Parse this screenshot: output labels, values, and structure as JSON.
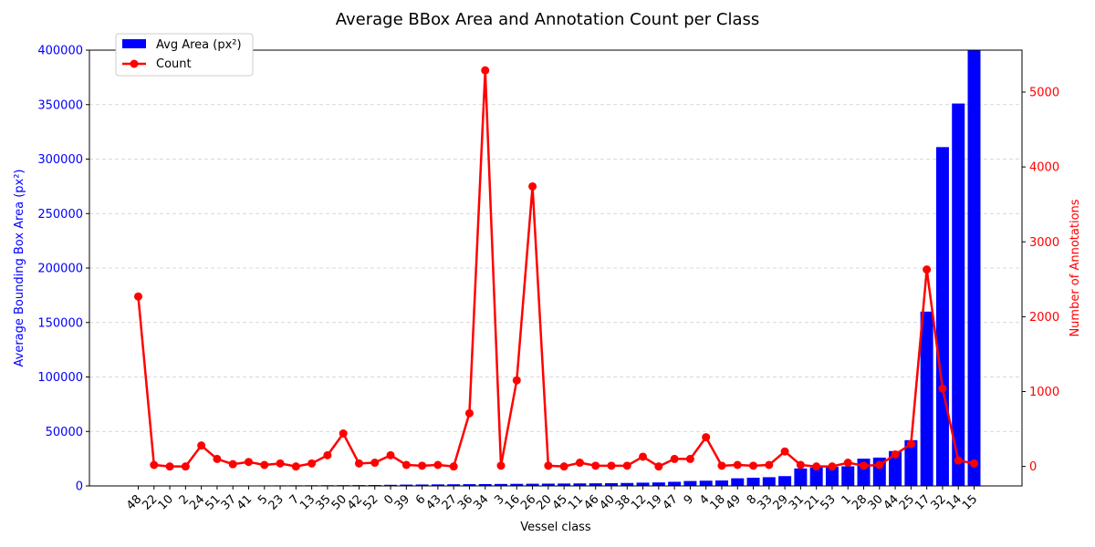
{
  "chart_data": {
    "type": "bar+line",
    "title": "Average BBox Area and Annotation Count per Class",
    "xlabel": "Vessel class",
    "ylabel_left": "Average Bounding Box Area (px²)",
    "ylabel_right": "Number of Annotations",
    "ylim_left": [
      0,
      400000
    ],
    "ylim_right": [
      -260,
      5560
    ],
    "yticks_left": [
      0,
      50000,
      100000,
      150000,
      200000,
      250000,
      300000,
      350000,
      400000
    ],
    "yticks_right": [
      0,
      1000,
      2000,
      3000,
      4000,
      5000
    ],
    "grid": "horizontal-dashed",
    "legend_position": "top-left",
    "colors": {
      "bars": "#0000ff",
      "line": "#ff0000",
      "left_axis": "#0000ff",
      "right_axis": "#ff0000"
    },
    "categories": [
      "48",
      "22",
      "10",
      "2",
      "24",
      "51",
      "37",
      "41",
      "5",
      "23",
      "7",
      "13",
      "35",
      "50",
      "42",
      "52",
      "0",
      "39",
      "6",
      "43",
      "27",
      "36",
      "34",
      "3",
      "16",
      "26",
      "20",
      "45",
      "11",
      "46",
      "40",
      "38",
      "12",
      "19",
      "47",
      "9",
      "4",
      "18",
      "49",
      "8",
      "33",
      "29",
      "31",
      "21",
      "53",
      "1",
      "28",
      "30",
      "44",
      "25",
      "17",
      "32",
      "14",
      "15"
    ],
    "series": [
      {
        "name": "Avg Area (px²)",
        "axis": "left",
        "kind": "bar",
        "values": [
          50,
          100,
          150,
          200,
          250,
          300,
          350,
          400,
          450,
          500,
          550,
          600,
          650,
          700,
          750,
          800,
          1000,
          1200,
          1300,
          1400,
          1500,
          1600,
          1700,
          1800,
          1900,
          2000,
          2100,
          2200,
          2300,
          2400,
          2500,
          2700,
          3000,
          3200,
          3800,
          4500,
          4800,
          5000,
          7000,
          7500,
          8000,
          9000,
          16000,
          17000,
          17500,
          18000,
          25000,
          26000,
          32000,
          42000,
          160000,
          311000,
          351000,
          400000
        ]
      },
      {
        "name": "Count",
        "axis": "right",
        "kind": "line",
        "values": [
          2270,
          20,
          0,
          0,
          280,
          100,
          30,
          60,
          20,
          40,
          0,
          40,
          150,
          440,
          40,
          50,
          150,
          20,
          10,
          20,
          0,
          710,
          5290,
          10,
          1150,
          3740,
          10,
          0,
          50,
          10,
          10,
          10,
          130,
          0,
          100,
          100,
          390,
          10,
          20,
          10,
          20,
          200,
          20,
          0,
          0,
          50,
          10,
          20,
          160,
          300,
          2630,
          1040,
          80,
          40
        ]
      }
    ]
  }
}
